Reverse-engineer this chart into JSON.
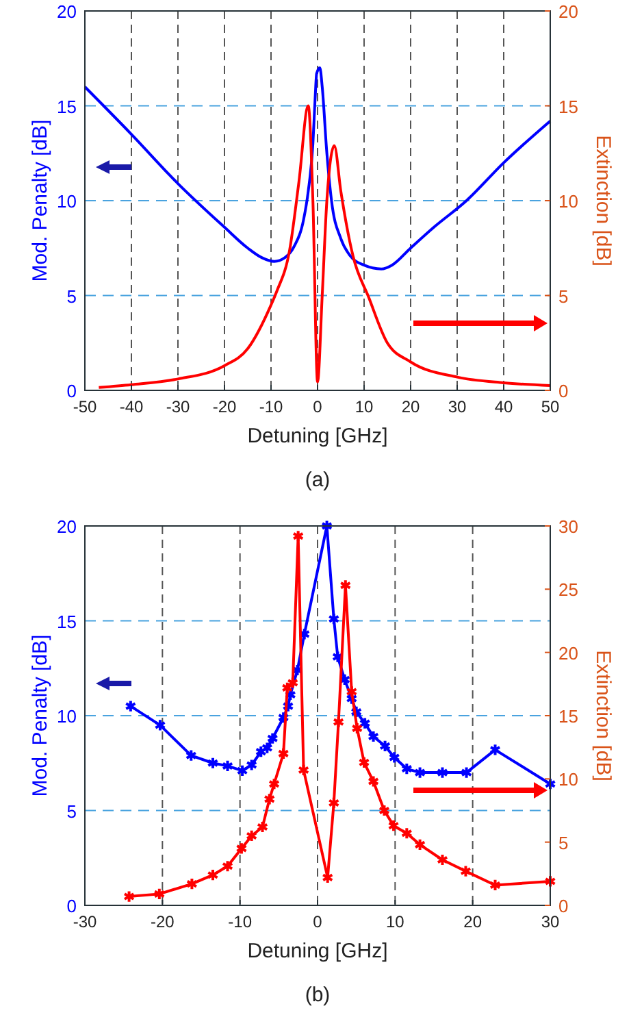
{
  "chart_data": [
    {
      "type": "line",
      "title": "(a)",
      "xlabel": "Detuning [GHz]",
      "ylabel": "Mod. Penalty [dB]",
      "y2label": "Extinction [dB]",
      "xlim": [
        -50,
        50
      ],
      "xticks": [
        -50,
        -40,
        -30,
        -20,
        -10,
        0,
        10,
        20,
        30,
        40,
        50
      ],
      "ylim": [
        0,
        20
      ],
      "yticks": [
        0,
        5,
        10,
        15,
        20
      ],
      "y2lim": [
        0,
        20
      ],
      "y2ticks": [
        0,
        5,
        10,
        15,
        20
      ],
      "grid": true,
      "line_style": "solid",
      "series": [
        {
          "color": "#0000ff",
          "axis": "y",
          "x": [
            -50,
            -40,
            -30,
            -20,
            -15,
            -12,
            -9.3,
            -7,
            -5,
            -3,
            -2,
            -1,
            -0.5,
            -0.2,
            0.5,
            1,
            2,
            3,
            5,
            7,
            10,
            13.7,
            16,
            20,
            25,
            32,
            40,
            50
          ],
          "values": [
            16,
            13.5,
            10.9,
            8.6,
            7.5,
            7.0,
            6.8,
            7.0,
            7.6,
            9,
            10.5,
            13,
            15.5,
            16.7,
            17.0,
            16,
            12.5,
            10,
            8,
            7.1,
            6.6,
            6.4,
            6.6,
            7.5,
            8.6,
            10,
            12,
            14.2
          ]
        },
        {
          "color": "#ff0000",
          "axis": "y2",
          "x": [
            -47,
            -40,
            -30,
            -20,
            -15,
            -10,
            -8.8,
            -6,
            -4,
            -2,
            -1,
            0,
            1,
            2,
            3.6,
            5,
            7.6,
            11,
            15,
            20,
            30,
            40,
            50
          ],
          "values": [
            0.15,
            0.3,
            0.6,
            1.3,
            2.2,
            4.5,
            5.2,
            7.4,
            11,
            15,
            10,
            0.45,
            5,
            10,
            12.9,
            10.5,
            7.1,
            4.9,
            2.5,
            1.5,
            0.7,
            0.4,
            0.25
          ]
        }
      ]
    },
    {
      "type": "line",
      "title": "(b)",
      "xlabel": "Detuning [GHz]",
      "ylabel": "Mod. Penalty [dB]",
      "y2label": "Extinction [dB]",
      "xlim": [
        -30,
        30
      ],
      "xticks": [
        -30,
        -20,
        -10,
        0,
        10,
        20,
        30
      ],
      "ylim": [
        0,
        20
      ],
      "yticks": [
        0,
        5,
        10,
        15,
        20
      ],
      "y2lim": [
        0,
        30
      ],
      "y2ticks": [
        0,
        5,
        10,
        15,
        20,
        25,
        30
      ],
      "grid": true,
      "line_style": "solid",
      "marker": "cross",
      "series": [
        {
          "color": "#0000ff",
          "axis": "y",
          "x": [
            -24.1,
            -20.3,
            -16.3,
            -13.5,
            -11.6,
            -9.7,
            -8.5,
            -7.3,
            -6.5,
            -5.8,
            -4.4,
            -3.8,
            -3.5,
            -2.6,
            -1.7,
            1.2,
            2.1,
            2.6,
            3.5,
            4.4,
            5.0,
            6.1,
            7.2,
            8.7,
            9.9,
            11.5,
            13.2,
            16.1,
            19.2,
            22.9,
            30
          ],
          "values": [
            10.5,
            9.5,
            7.9,
            7.5,
            7.35,
            7.1,
            7.4,
            8.1,
            8.3,
            8.8,
            9.9,
            10.5,
            11.1,
            12.4,
            14.3,
            20,
            15.1,
            13.1,
            11.9,
            10.9,
            10.2,
            9.6,
            8.9,
            8.4,
            7.8,
            7.2,
            7.0,
            7.0,
            7.0,
            8.2,
            6.4
          ]
        },
        {
          "color": "#ff0000",
          "axis": "y2",
          "x": [
            -24.3,
            -20.4,
            -16.2,
            -13.5,
            -11.6,
            -9.8,
            -8.5,
            -7.1,
            -6.2,
            -5.6,
            -4.4,
            -3.9,
            -3.2,
            -2.5,
            -1.8,
            1.3,
            2.1,
            2.7,
            3.6,
            4.4,
            5.1,
            6.0,
            7.2,
            8.6,
            9.8,
            11.5,
            13.2,
            16.1,
            19.1,
            22.9,
            30
          ],
          "values": [
            0.7,
            0.9,
            1.7,
            2.4,
            3.1,
            4.5,
            5.5,
            6.2,
            8.4,
            9.6,
            12.0,
            17.2,
            17.6,
            29.2,
            10.7,
            2.2,
            8.1,
            14.5,
            25.3,
            16.9,
            14.0,
            11.3,
            9.8,
            7.5,
            6.3,
            5.7,
            4.8,
            3.6,
            2.7,
            1.6,
            1.9
          ]
        }
      ]
    }
  ]
}
